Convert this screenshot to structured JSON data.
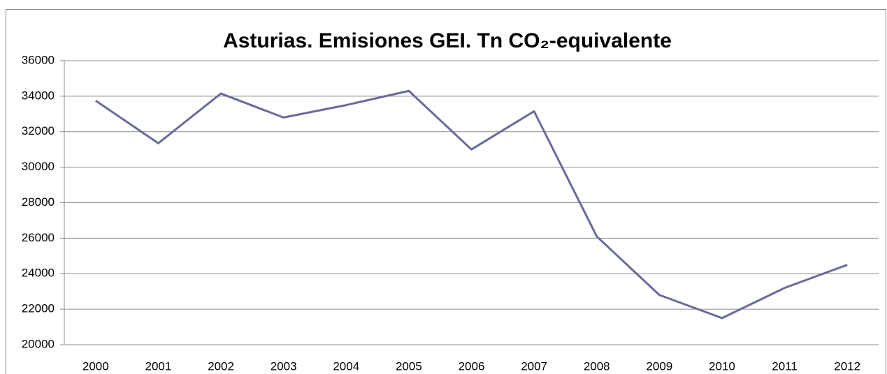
{
  "chart_data": {
    "type": "line",
    "title": "Asturias. Emisiones GEI. Tn CO₂-equivalente",
    "categories": [
      "2000",
      "2001",
      "2002",
      "2003",
      "2004",
      "2005",
      "2006",
      "2007",
      "2008",
      "2009",
      "2010",
      "2011",
      "2012"
    ],
    "values": [
      33750,
      31350,
      34150,
      32800,
      33500,
      34300,
      31000,
      33150,
      26100,
      22800,
      21500,
      23200,
      24500
    ],
    "color": "#6a6a9c",
    "ylim": [
      20000,
      36000
    ],
    "yticks": [
      20000,
      22000,
      24000,
      26000,
      28000,
      30000,
      32000,
      34000,
      36000
    ],
    "grid": true
  }
}
